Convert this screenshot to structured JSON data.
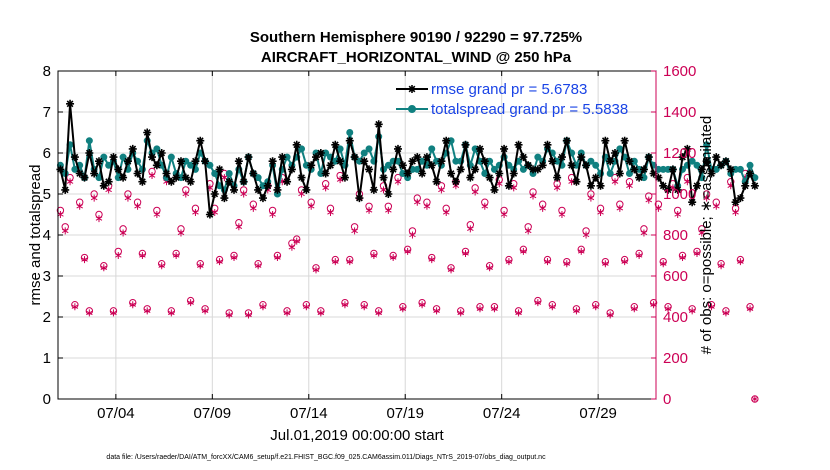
{
  "chart_data": {
    "type": "line",
    "title_line1": "Southern Hemisphere 90190 / 92290 = 97.725%",
    "title_line2": "AIRCRAFT_HORIZONTAL_WIND @ 250 hPa",
    "xlabel": "Jul.01,2019 00:00:00 start",
    "ylabel": "rmse and totalspread",
    "ylabel_right": "# of obs: o=possible; ∗=assimilated",
    "footer": "data file: /Users/raeder/DAI/ATM_forcXX/CAM6_setup/f.e21.FHIST_BGC.f09_025.CAM6assim.011/Diags_NTrS_2019-07/obs_diag_output.nc",
    "xlim": [
      1.0,
      32.0
    ],
    "ylim": [
      0,
      8
    ],
    "ylim_right": [
      0,
      1600
    ],
    "x_ticks": [
      4,
      9,
      14,
      19,
      24,
      29
    ],
    "x_tick_labels": [
      "07/04",
      "07/09",
      "07/14",
      "07/19",
      "07/24",
      "07/29"
    ],
    "y_ticks": [
      "0",
      "1",
      "2",
      "3",
      "4",
      "5",
      "6",
      "7",
      "8"
    ],
    "y_ticks_right": [
      "0",
      "200",
      "400",
      "600",
      "800",
      "1000",
      "1200",
      "1400",
      "1600"
    ],
    "grid": true,
    "legend_position": "top-right",
    "colors": {
      "rmse": "#000000",
      "totalspread": "#108080",
      "obs": "#cc0055",
      "legend_text": "#1a44e6",
      "grid": "#d8d8d8"
    },
    "series": [
      {
        "name": "rmse grand pr = 5.6783",
        "x_start": 1.125,
        "x_step": 0.25,
        "values": [
          5.6,
          5.1,
          7.2,
          5.9,
          5.5,
          5.4,
          6.0,
          5.5,
          5.8,
          5.2,
          5.3,
          5.9,
          5.6,
          5.4,
          5.8,
          6.1,
          5.5,
          5.3,
          6.5,
          5.9,
          5.7,
          6.0,
          5.5,
          5.3,
          5.4,
          5.8,
          5.4,
          5.3,
          5.8,
          6.3,
          5.8,
          4.5,
          5.0,
          5.6,
          4.9,
          5.3,
          5.1,
          5.8,
          5.3,
          5.9,
          5.5,
          5.1,
          4.9,
          5.2,
          5.8,
          5.1,
          5.9,
          5.3,
          5.6,
          6.2,
          5.4,
          5.1,
          5.7,
          5.9,
          6.0,
          5.5,
          5.7,
          6.2,
          5.8,
          5.4,
          6.3,
          5.9,
          4.9,
          5.8,
          5.6,
          5.1,
          6.7,
          5.4,
          5.0,
          5.6,
          6.1,
          5.7,
          5.5,
          5.8,
          5.9,
          5.5,
          5.9,
          5.7,
          5.3,
          5.8,
          6.3,
          5.5,
          5.3,
          5.6,
          6.2,
          5.4,
          5.6,
          6.1,
          5.8,
          5.4,
          5.1,
          5.5,
          6.1,
          5.2,
          5.5,
          6.2,
          5.9,
          5.7,
          5.6,
          5.6,
          5.7,
          6.2,
          5.8,
          5.4,
          5.9,
          6.3,
          5.7,
          5.3,
          5.9,
          5.7,
          5.2,
          5.4,
          5.2,
          6.3,
          5.8,
          6.0,
          5.5,
          6.3,
          5.8,
          5.6,
          5.4,
          5.6,
          5.9,
          5.5,
          5.4,
          5.2,
          5.1,
          5.6,
          5.1,
          5.9,
          6.1,
          4.8,
          5.2,
          5.6,
          5.8,
          5.5,
          5.9,
          5.7,
          5.8,
          5.6,
          4.8,
          4.9,
          5.2,
          5.5,
          5.2
        ],
        "marker": "star"
      },
      {
        "name": "totalspread grand pr = 5.5838",
        "x_start": 1.125,
        "x_step": 0.25,
        "values": [
          5.7,
          5.5,
          6.2,
          5.6,
          5.7,
          5.4,
          6.3,
          5.6,
          5.4,
          5.9,
          5.7,
          5.8,
          5.4,
          5.9,
          5.6,
          6.0,
          5.8,
          5.6,
          6.3,
          6.0,
          6.1,
          5.7,
          5.4,
          5.9,
          5.5,
          5.4,
          5.8,
          5.7,
          5.6,
          6.0,
          5.8,
          5.7,
          5.5,
          5.2,
          5.1,
          5.5,
          5.2,
          5.6,
          5.3,
          5.9,
          5.5,
          5.4,
          5.2,
          5.3,
          5.7,
          5.0,
          5.6,
          5.9,
          5.7,
          5.9,
          6.1,
          5.7,
          5.6,
          6.0,
          5.5,
          6.0,
          5.9,
          5.8,
          6.1,
          5.7,
          6.5,
          5.9,
          5.8,
          6.0,
          6.1,
          5.8,
          6.4,
          5.6,
          5.7,
          5.8,
          5.8,
          5.5,
          5.4,
          5.6,
          5.6,
          5.8,
          5.7,
          6.1,
          5.8,
          5.7,
          6.0,
          6.3,
          5.8,
          5.8,
          6.2,
          5.7,
          6.1,
          5.8,
          5.5,
          5.8,
          5.6,
          5.7,
          5.9,
          5.7,
          5.6,
          5.8,
          5.6,
          5.7,
          5.5,
          5.9,
          5.8,
          6.1,
          6.0,
          5.8,
          5.7,
          6.3,
          6.0,
          5.7,
          6.0,
          5.7,
          5.8,
          5.7,
          5.5,
          5.9,
          5.5,
          5.8,
          6.1,
          5.9,
          5.5,
          5.8,
          5.6,
          5.4,
          5.9,
          5.7,
          5.6,
          5.6,
          5.6,
          5.6,
          5.2,
          5.6,
          5.7,
          5.8,
          5.7,
          5.4,
          6.2,
          5.6,
          5.6,
          5.7,
          5.8,
          5.5,
          5.6,
          5.6,
          5.3,
          5.7,
          5.4
        ],
        "marker": "circle"
      }
    ],
    "obs_possible": {
      "name": "possible",
      "marker": "open-circle",
      "x_start": 1.125,
      "x_step": 0.25,
      "values": [
        920,
        840,
        1080,
        460,
        960,
        690,
        430,
        1000,
        900,
        650,
        1040,
        430,
        720,
        830,
        1000,
        470,
        960,
        710,
        440,
        1110,
        920,
        660,
        1080,
        430,
        710,
        830,
        1020,
        480,
        930,
        660,
        440,
        1050,
        930,
        680,
        1100,
        420,
        700,
        860,
        1020,
        420,
        950,
        660,
        460,
        1040,
        920,
        700,
        1080,
        430,
        760,
        780,
        1020,
        460,
        960,
        640,
        430,
        1050,
        930,
        680,
        1090,
        470,
        680,
        840,
        1000,
        460,
        940,
        710,
        430,
        1040,
        940,
        700,
        1080,
        450,
        730,
        820,
        980,
        470,
        960,
        690,
        440,
        1040,
        930,
        640,
        1060,
        430,
        720,
        850,
        1030,
        450,
        960,
        650,
        450,
        1070,
        920,
        680,
        1050,
        430,
        730,
        840,
        1010,
        480,
        950,
        680,
        460,
        1050,
        920,
        670,
        1080,
        440,
        730,
        820,
        1000,
        460,
        930,
        670,
        420,
        1080,
        950,
        680,
        1060,
        450,
        710,
        830,
        990,
        470,
        950,
        670,
        450,
        1050,
        920,
        700,
        1080,
        440,
        720,
        830,
        1000,
        460,
        960,
        660,
        430,
        1060,
        930,
        680,
        1100,
        450,
        0
      ]
    },
    "obs_assimilated": {
      "name": "assimilated",
      "marker": "asterisk",
      "x_start": 1.125,
      "x_step": 0.25,
      "values": [
        900,
        820,
        1060,
        450,
        940,
        680,
        420,
        980,
        880,
        640,
        1020,
        420,
        700,
        810,
        980,
        460,
        940,
        700,
        430,
        1090,
        900,
        650,
        1060,
        420,
        700,
        810,
        1000,
        470,
        910,
        650,
        430,
        1030,
        910,
        670,
        1080,
        410,
        690,
        840,
        1000,
        410,
        930,
        650,
        450,
        1020,
        900,
        690,
        1060,
        420,
        740,
        770,
        1000,
        450,
        940,
        630,
        420,
        1030,
        910,
        670,
        1070,
        460,
        670,
        820,
        980,
        450,
        920,
        700,
        420,
        1020,
        920,
        690,
        1060,
        440,
        720,
        800,
        960,
        460,
        940,
        680,
        430,
        1020,
        910,
        630,
        1040,
        420,
        710,
        830,
        1010,
        440,
        940,
        640,
        440,
        1050,
        900,
        670,
        1030,
        420,
        720,
        820,
        990,
        470,
        930,
        670,
        450,
        1030,
        900,
        660,
        1060,
        430,
        720,
        800,
        980,
        450,
        910,
        660,
        410,
        1060,
        930,
        670,
        1040,
        440,
        700,
        810,
        970,
        460,
        930,
        660,
        440,
        1030,
        900,
        690,
        1060,
        430,
        710,
        810,
        980,
        450,
        940,
        650,
        420,
        1040,
        910,
        670,
        1080,
        440,
        0
      ]
    }
  }
}
